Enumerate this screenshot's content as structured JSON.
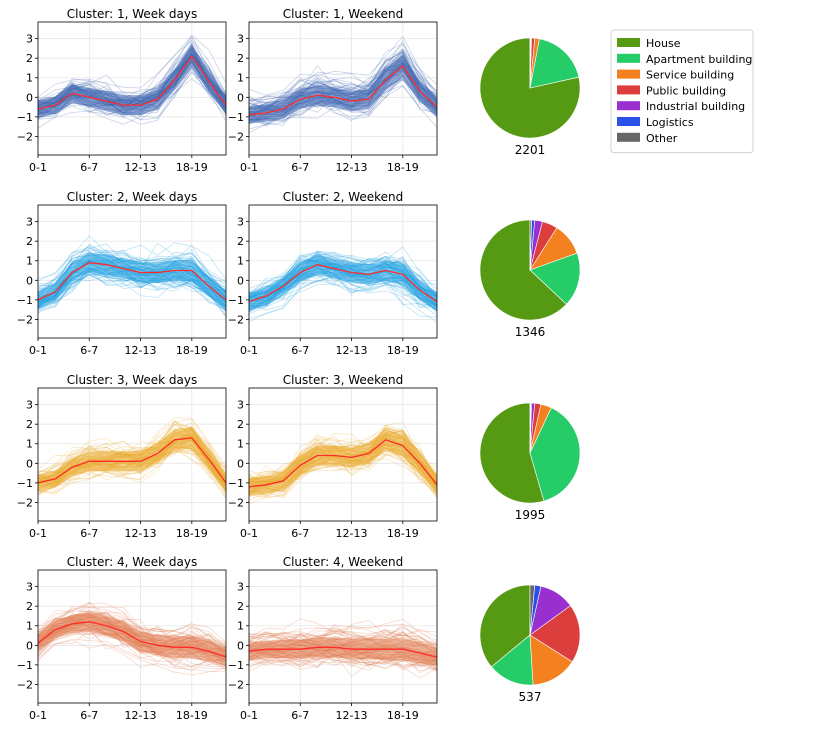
{
  "legend": [
    {
      "label": "House",
      "color": "#559a12"
    },
    {
      "label": "Apartment building",
      "color": "#25cc67"
    },
    {
      "label": "Service building",
      "color": "#f38120"
    },
    {
      "label": "Public building",
      "color": "#dc3d3d"
    },
    {
      "label": "Industrial building",
      "color": "#9a2fcf"
    },
    {
      "label": "Logistics",
      "color": "#2a50e8"
    },
    {
      "label": "Other",
      "color": "#666666"
    }
  ],
  "chart_data": [
    {
      "type": "line",
      "cluster": 1,
      "title": "Cluster: 1, Week days",
      "x_tick_labels": [
        "0-1",
        "6-7",
        "12-13",
        "18-19"
      ],
      "y_ticks": [
        -2,
        -1,
        0,
        1,
        2,
        3
      ],
      "ylim": [
        -2.95,
        3.85
      ],
      "band_color": "#3c64b0",
      "mean_color": "#ff2a2a",
      "mean": [
        -0.6,
        -0.4,
        0.2,
        0.0,
        -0.2,
        -0.4,
        -0.4,
        -0.1,
        0.9,
        2.1,
        0.8,
        -0.4
      ]
    },
    {
      "type": "line",
      "cluster": 1,
      "title": "Cluster: 1, Weekend",
      "x_tick_labels": [
        "0-1",
        "6-7",
        "12-13",
        "18-19"
      ],
      "y_ticks": [
        -2,
        -1,
        0,
        1,
        2,
        3
      ],
      "ylim": [
        -2.95,
        3.85
      ],
      "band_color": "#3c64b0",
      "mean_color": "#ff2a2a",
      "mean": [
        -0.9,
        -0.8,
        -0.6,
        -0.1,
        0.1,
        0.0,
        -0.2,
        -0.1,
        0.9,
        1.6,
        0.3,
        -0.5
      ]
    },
    {
      "type": "line",
      "cluster": 2,
      "title": "Cluster: 2, Week days",
      "x_tick_labels": [
        "0-1",
        "6-7",
        "12-13",
        "18-19"
      ],
      "y_ticks": [
        -2,
        -1,
        0,
        1,
        2,
        3
      ],
      "ylim": [
        -2.95,
        3.85
      ],
      "band_color": "#1e9fe0",
      "mean_color": "#ff2a2a",
      "mean": [
        -1.0,
        -0.6,
        0.4,
        0.9,
        0.8,
        0.6,
        0.4,
        0.4,
        0.5,
        0.5,
        -0.3,
        -1.0
      ]
    },
    {
      "type": "line",
      "cluster": 2,
      "title": "Cluster: 2, Weekend",
      "x_tick_labels": [
        "0-1",
        "6-7",
        "12-13",
        "18-19"
      ],
      "y_ticks": [
        -2,
        -1,
        0,
        1,
        2,
        3
      ],
      "ylim": [
        -2.95,
        3.85
      ],
      "band_color": "#1e9fe0",
      "mean_color": "#ff2a2a",
      "mean": [
        -1.1,
        -0.8,
        -0.3,
        0.4,
        0.8,
        0.6,
        0.4,
        0.3,
        0.5,
        0.3,
        -0.5,
        -1.1
      ]
    },
    {
      "type": "line",
      "cluster": 3,
      "title": "Cluster: 3, Week days",
      "x_tick_labels": [
        "0-1",
        "6-7",
        "12-13",
        "18-19"
      ],
      "y_ticks": [
        -2,
        -1,
        0,
        1,
        2,
        3
      ],
      "ylim": [
        -2.95,
        3.85
      ],
      "band_color": "#eaa92a",
      "mean_color": "#ff2a2a",
      "mean": [
        -1.0,
        -0.8,
        -0.2,
        0.1,
        0.1,
        0.1,
        0.1,
        0.5,
        1.2,
        1.3,
        0.2,
        -1.0
      ]
    },
    {
      "type": "line",
      "cluster": 3,
      "title": "Cluster: 3, Weekend",
      "x_tick_labels": [
        "0-1",
        "6-7",
        "12-13",
        "18-19"
      ],
      "y_ticks": [
        -2,
        -1,
        0,
        1,
        2,
        3
      ],
      "ylim": [
        -2.95,
        3.85
      ],
      "band_color": "#eaa92a",
      "mean_color": "#ff2a2a",
      "mean": [
        -1.2,
        -1.1,
        -0.9,
        -0.1,
        0.4,
        0.4,
        0.3,
        0.5,
        1.2,
        0.9,
        0.0,
        -1.1
      ]
    },
    {
      "type": "line",
      "cluster": 4,
      "title": "Cluster: 4, Week days",
      "x_tick_labels": [
        "0-1",
        "6-7",
        "12-13",
        "18-19"
      ],
      "y_ticks": [
        -2,
        -1,
        0,
        1,
        2,
        3
      ],
      "ylim": [
        -2.95,
        3.85
      ],
      "band_color": "#e07a4e",
      "mean_color": "#ff2a2a",
      "mean": [
        0.1,
        0.8,
        1.1,
        1.2,
        1.0,
        0.7,
        0.2,
        0.0,
        -0.1,
        -0.1,
        -0.3,
        -0.6
      ]
    },
    {
      "type": "line",
      "cluster": 4,
      "title": "Cluster: 4, Weekend",
      "x_tick_labels": [
        "0-1",
        "6-7",
        "12-13",
        "18-19"
      ],
      "y_ticks": [
        -2,
        -1,
        0,
        1,
        2,
        3
      ],
      "ylim": [
        -2.95,
        3.85
      ],
      "band_color": "#e07a4e",
      "mean_color": "#ff2a2a",
      "mean": [
        -0.3,
        -0.2,
        -0.2,
        -0.2,
        -0.1,
        -0.1,
        -0.2,
        -0.2,
        -0.2,
        -0.2,
        -0.4,
        -0.6
      ]
    },
    {
      "type": "pie",
      "cluster": 1,
      "total_label": "2201",
      "categories": [
        "House",
        "Apartment building",
        "Service building",
        "Public building",
        "Industrial building",
        "Logistics",
        "Other"
      ],
      "values": [
        78.5,
        18.5,
        1.5,
        1.0,
        0.3,
        0.1,
        0.1
      ]
    },
    {
      "type": "pie",
      "cluster": 2,
      "total_label": "1346",
      "categories": [
        "House",
        "Apartment building",
        "Service building",
        "Public building",
        "Industrial building",
        "Logistics",
        "Other"
      ],
      "values": [
        63.0,
        17.5,
        10.5,
        5.0,
        2.5,
        1.0,
        0.5
      ]
    },
    {
      "type": "pie",
      "cluster": 3,
      "total_label": "1995",
      "categories": [
        "House",
        "Apartment building",
        "Service building",
        "Public building",
        "Industrial building",
        "Logistics",
        "Other"
      ],
      "values": [
        54.5,
        38.5,
        3.5,
        2.0,
        1.0,
        0.3,
        0.2
      ]
    },
    {
      "type": "pie",
      "cluster": 4,
      "total_label": "537",
      "categories": [
        "House",
        "Apartment building",
        "Service building",
        "Public building",
        "Industrial building",
        "Logistics",
        "Other"
      ],
      "values": [
        36.0,
        15.0,
        15.0,
        19.0,
        11.5,
        2.0,
        1.5
      ]
    }
  ]
}
